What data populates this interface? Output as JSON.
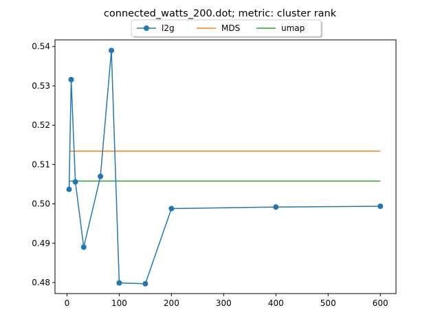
{
  "chart_data": {
    "type": "line",
    "title": "connected_watts_200.dot; metric: cluster rank",
    "xlabel": "",
    "ylabel": "",
    "xlim": [
      -23,
      630
    ],
    "ylim": [
      0.4772,
      0.5417
    ],
    "xticks": [
      0,
      100,
      200,
      300,
      400,
      500,
      600
    ],
    "xtick_labels": [
      "0",
      "100",
      "200",
      "300",
      "400",
      "500",
      "600"
    ],
    "yticks": [
      0.48,
      0.49,
      0.5,
      0.51,
      0.52,
      0.53,
      0.54
    ],
    "ytick_labels": [
      "0.48",
      "0.49",
      "0.50",
      "0.51",
      "0.52",
      "0.53",
      "0.54"
    ],
    "grid": false,
    "legend_position": "top-center",
    "series": [
      {
        "name": "l2g",
        "color": "#1f77b4",
        "marker": "circle",
        "x": [
          4,
          8,
          16,
          32,
          64,
          85,
          100,
          150,
          200,
          400,
          600
        ],
        "y": [
          0.5037,
          0.5316,
          0.5056,
          0.489,
          0.507,
          0.539,
          0.4799,
          0.4797,
          0.4988,
          0.4992,
          0.4994
        ]
      },
      {
        "name": "MDS",
        "color": "#ff7f0e",
        "marker": "none",
        "x": [
          4,
          600
        ],
        "y": [
          0.5134,
          0.5134
        ]
      },
      {
        "name": "umap",
        "color": "#2ca02c",
        "marker": "none",
        "x": [
          4,
          600
        ],
        "y": [
          0.5058,
          0.5058
        ]
      }
    ]
  }
}
